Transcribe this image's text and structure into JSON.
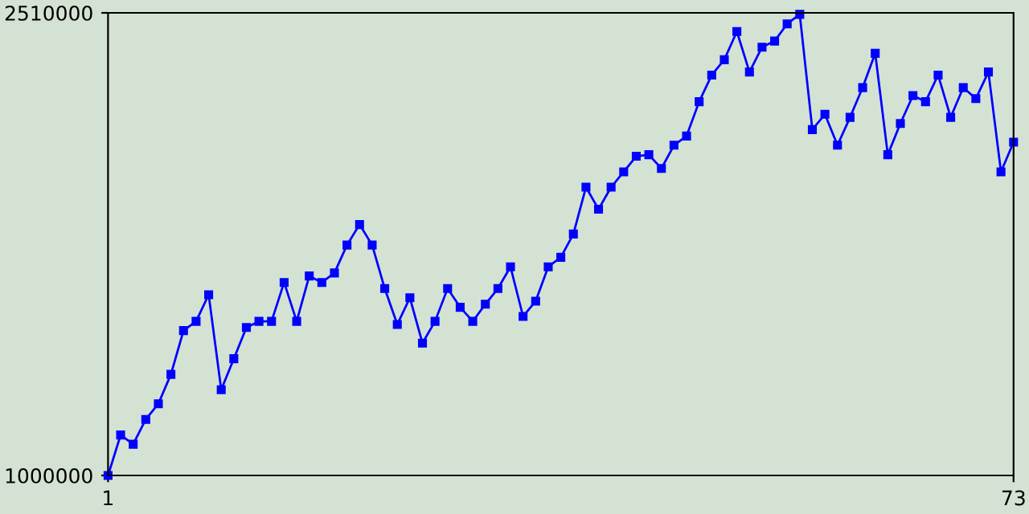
{
  "chart_data": {
    "type": "line",
    "x": [
      1,
      2,
      3,
      4,
      5,
      6,
      7,
      8,
      9,
      10,
      11,
      12,
      13,
      14,
      15,
      16,
      17,
      18,
      19,
      20,
      21,
      22,
      23,
      24,
      25,
      26,
      27,
      28,
      29,
      30,
      31,
      32,
      33,
      34,
      35,
      36,
      37,
      38,
      39,
      40,
      41,
      42,
      43,
      44,
      45,
      46,
      47,
      48,
      49,
      50,
      51,
      52,
      53,
      54,
      55,
      56,
      57,
      58,
      59,
      60,
      61,
      62,
      63,
      64,
      65,
      66,
      67,
      68,
      69,
      70,
      71,
      72,
      73
    ],
    "series": [
      {
        "color": "#0000ff",
        "values": [
          1000000,
          1132000,
          1102000,
          1183000,
          1234000,
          1330000,
          1473000,
          1503000,
          1590000,
          1280000,
          1381000,
          1483000,
          1503000,
          1503000,
          1630000,
          1503000,
          1651000,
          1630000,
          1661000,
          1752000,
          1819000,
          1752000,
          1610000,
          1493000,
          1580000,
          1432000,
          1503000,
          1610000,
          1549000,
          1503000,
          1559000,
          1610000,
          1681000,
          1519000,
          1569000,
          1681000,
          1712000,
          1788000,
          1941000,
          1869000,
          1941000,
          1991000,
          2042000,
          2047000,
          2002000,
          2078000,
          2108000,
          2220000,
          2307000,
          2357000,
          2449000,
          2317000,
          2398000,
          2418000,
          2474000,
          2505000,
          2129000,
          2179000,
          2078000,
          2169000,
          2266000,
          2378000,
          2047000,
          2149000,
          2240000,
          2220000,
          2307000,
          2169000,
          2266000,
          2230000,
          2317000,
          1991000,
          2088000
        ]
      }
    ],
    "xlim": [
      1,
      73
    ],
    "xticks": [
      1,
      73
    ],
    "ylim": [
      1000000,
      2510000
    ],
    "yticks": [
      1000000,
      2510000
    ],
    "marker": "square",
    "line_style": "solid",
    "grid": false,
    "legend": false
  }
}
